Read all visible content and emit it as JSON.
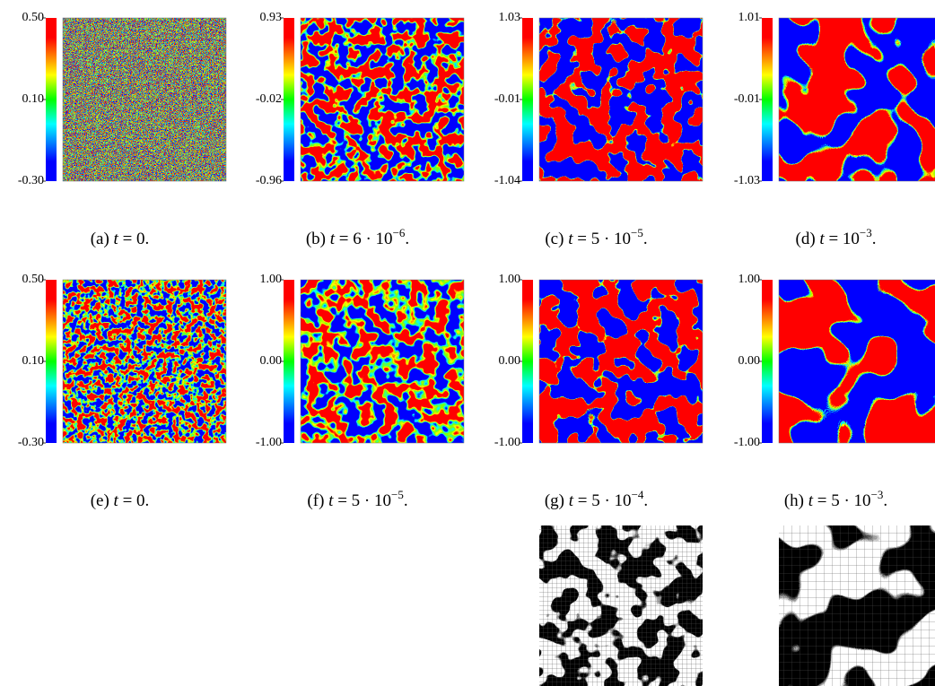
{
  "panels": [
    {
      "ticks": [
        "0.50",
        "0.10",
        "-0.30"
      ],
      "caption": {
        "label": "(a)",
        "var": "t",
        "expr": "= 0",
        "end": "."
      }
    },
    {
      "ticks": [
        "0.93",
        "-0.02",
        "-0.96"
      ],
      "caption": {
        "label": "(b)",
        "var": "t",
        "expr": "= 6 · 10",
        "sup": "−6",
        "end": "."
      }
    },
    {
      "ticks": [
        "1.03",
        "-0.01",
        "-1.04"
      ],
      "caption": {
        "label": "(c)",
        "var": "t",
        "expr": "= 5 · 10",
        "sup": "−5",
        "end": "."
      }
    },
    {
      "ticks": [
        "1.01",
        "-0.01",
        "-1.03"
      ],
      "caption": {
        "label": "(d)",
        "var": "t",
        "expr": "= 10",
        "sup": "−3",
        "end": "."
      }
    },
    {
      "ticks": [
        "0.50",
        "0.10",
        "-0.30"
      ],
      "caption": {
        "label": "(e)",
        "var": "t",
        "expr": "= 0",
        "end": "."
      }
    },
    {
      "ticks": [
        "1.00",
        "0.00",
        "-1.00"
      ],
      "caption": {
        "label": "(f)",
        "var": "t",
        "expr": "= 5 · 10",
        "sup": "−5",
        "end": "."
      }
    },
    {
      "ticks": [
        "1.00",
        "0.00",
        "-1.00"
      ],
      "caption": {
        "label": "(g)",
        "var": "t",
        "expr": "= 5 · 10",
        "sup": "−4",
        "end": "."
      }
    },
    {
      "ticks": [
        "1.00",
        "0.00",
        "-1.00"
      ],
      "caption": {
        "label": "(h)",
        "var": "t",
        "expr": "= 5 · 10",
        "sup": "−3",
        "end": "."
      }
    }
  ]
}
